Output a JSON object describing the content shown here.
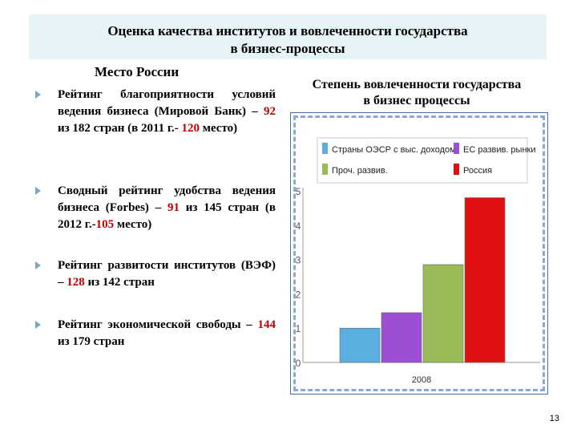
{
  "title": {
    "line1": "Оценка качества институтов и вовлеченности государства",
    "line2": "в бизнес-процессы"
  },
  "left": {
    "heading": "Место России",
    "bullets": [
      {
        "pre": "Рейтинг благоприятности условий ведения бизнеса (Мировой Банк) – ",
        "val": "92",
        "mid": " из 182 стран (в 2011 г.- ",
        "val2": "120",
        "post": " место)"
      },
      {
        "pre": "Сводный рейтинг удобства ведения бизнеса (Forbes) – ",
        "val": "91",
        "mid": " из 145 стран (в 2012 г.-",
        "val2": "105",
        "post": " место)"
      },
      {
        "pre": "Рейтинг развитости институтов (ВЭФ) – ",
        "val": "128",
        "mid": " из 142 стран",
        "val2": "",
        "post": ""
      },
      {
        "pre": "Рейтинг экономической свободы – ",
        "val": "144",
        "mid": " из 179 стран",
        "val2": "",
        "post": ""
      }
    ]
  },
  "right": {
    "heading_line1": "Степень вовлеченности государства",
    "heading_line2": "в бизнес процессы"
  },
  "page_number": "13",
  "chart_data": {
    "type": "bar",
    "categories": [
      "2008"
    ],
    "series": [
      {
        "name": "Страны ОЭСР с выс. доходом",
        "values": [
          1.0
        ],
        "color": "#5aafe0"
      },
      {
        "name": "ЕС развив. рынки",
        "values": [
          1.45
        ],
        "color": "#9b4fd4"
      },
      {
        "name": "Проч. развив.",
        "values": [
          2.85
        ],
        "color": "#9bbb59"
      },
      {
        "name": "Россия",
        "values": [
          4.8
        ],
        "color": "#e01010"
      }
    ],
    "ylim": [
      0,
      5
    ],
    "yticks": [
      "0",
      "1",
      "2",
      "3",
      "4",
      "5"
    ],
    "legend_position": "top",
    "grid": false
  }
}
